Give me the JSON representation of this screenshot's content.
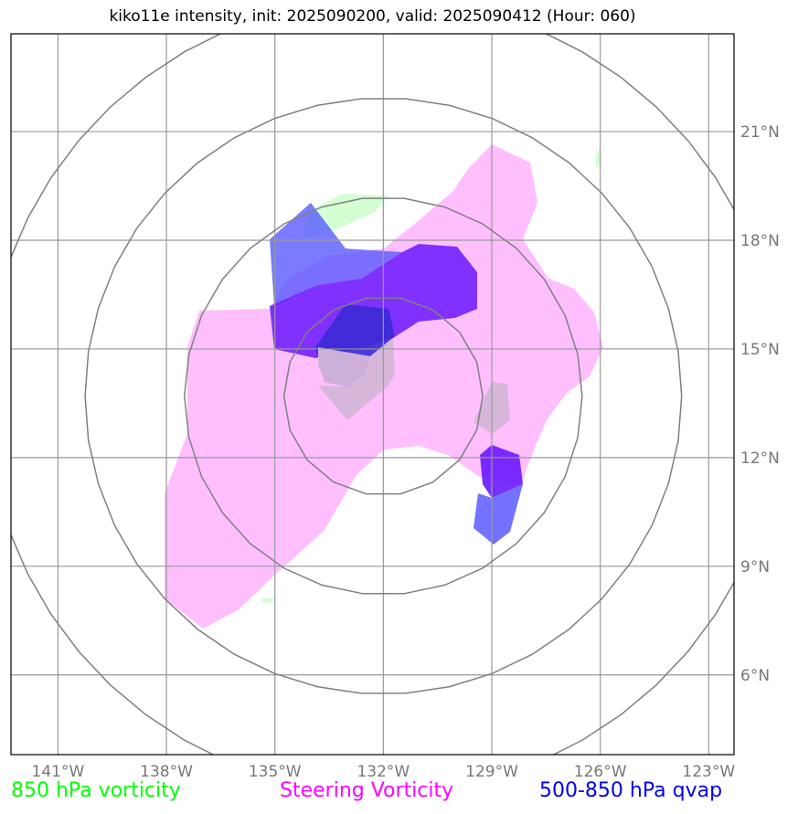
{
  "title": "kiko11e intensity, init: 2025090200, valid: 2025090412 (Hour: 060)",
  "map": {
    "lon_labels": [
      "141°W",
      "138°W",
      "135°W",
      "132°W",
      "129°W",
      "126°W",
      "123°W"
    ],
    "lat_labels": [
      "21°N",
      "18°N",
      "15°N",
      "12°N",
      "9°N",
      "6°N"
    ],
    "extent": {
      "lon_min": -142.3,
      "lon_max": -122.3,
      "lat_min": 3.8,
      "lat_max": 23.7
    },
    "center": {
      "lon": -132.0,
      "lat": 13.7
    },
    "range_ring_radii_deg": [
      2.75,
      5.5,
      8.25,
      11.0
    ]
  },
  "legend": {
    "green": {
      "label": "850 hPa vorticity",
      "color": "#00ff00"
    },
    "magenta": {
      "label": "Steering Vorticity",
      "color": "#ff00ff"
    },
    "blue": {
      "label": "500-850 hPa qvap",
      "color": "#0000ee"
    }
  },
  "colors": {
    "grid": "#999999",
    "rings": "#808080",
    "frame": "#000000",
    "vorticity_850": "#c8ffc8",
    "steering_vorticity": "#ffb4ff",
    "qvap": "#5a5aff",
    "qvap_strong": "#6a18ff",
    "qvap_core": "#3a2ad4",
    "overlap": "#d4b6d8"
  }
}
